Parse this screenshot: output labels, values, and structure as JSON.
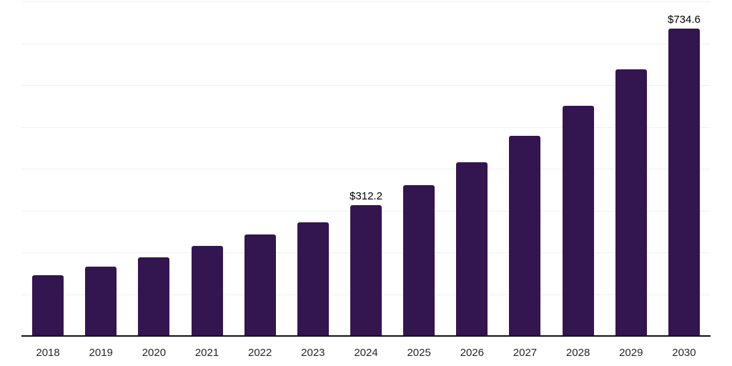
{
  "chart_data": {
    "type": "bar",
    "categories": [
      "2018",
      "2019",
      "2020",
      "2021",
      "2022",
      "2023",
      "2024",
      "2025",
      "2026",
      "2027",
      "2028",
      "2029",
      "2030"
    ],
    "values": [
      145,
      166,
      188,
      215,
      243,
      271,
      312.2,
      360,
      416,
      478,
      551,
      638,
      734.6
    ],
    "data_labels": {
      "2024": "$312.2",
      "2030": "$734.6"
    },
    "title": "",
    "xlabel": "",
    "ylabel": "",
    "ylim": [
      0,
      800
    ],
    "grid_step": 100,
    "grid": true,
    "legend": false,
    "colors": {
      "bar": "#33154F",
      "gridline": "#f0f0f0",
      "axis": "#111111",
      "value_label": "#000000",
      "tick_label": "#262626",
      "background": "#ffffff"
    }
  }
}
